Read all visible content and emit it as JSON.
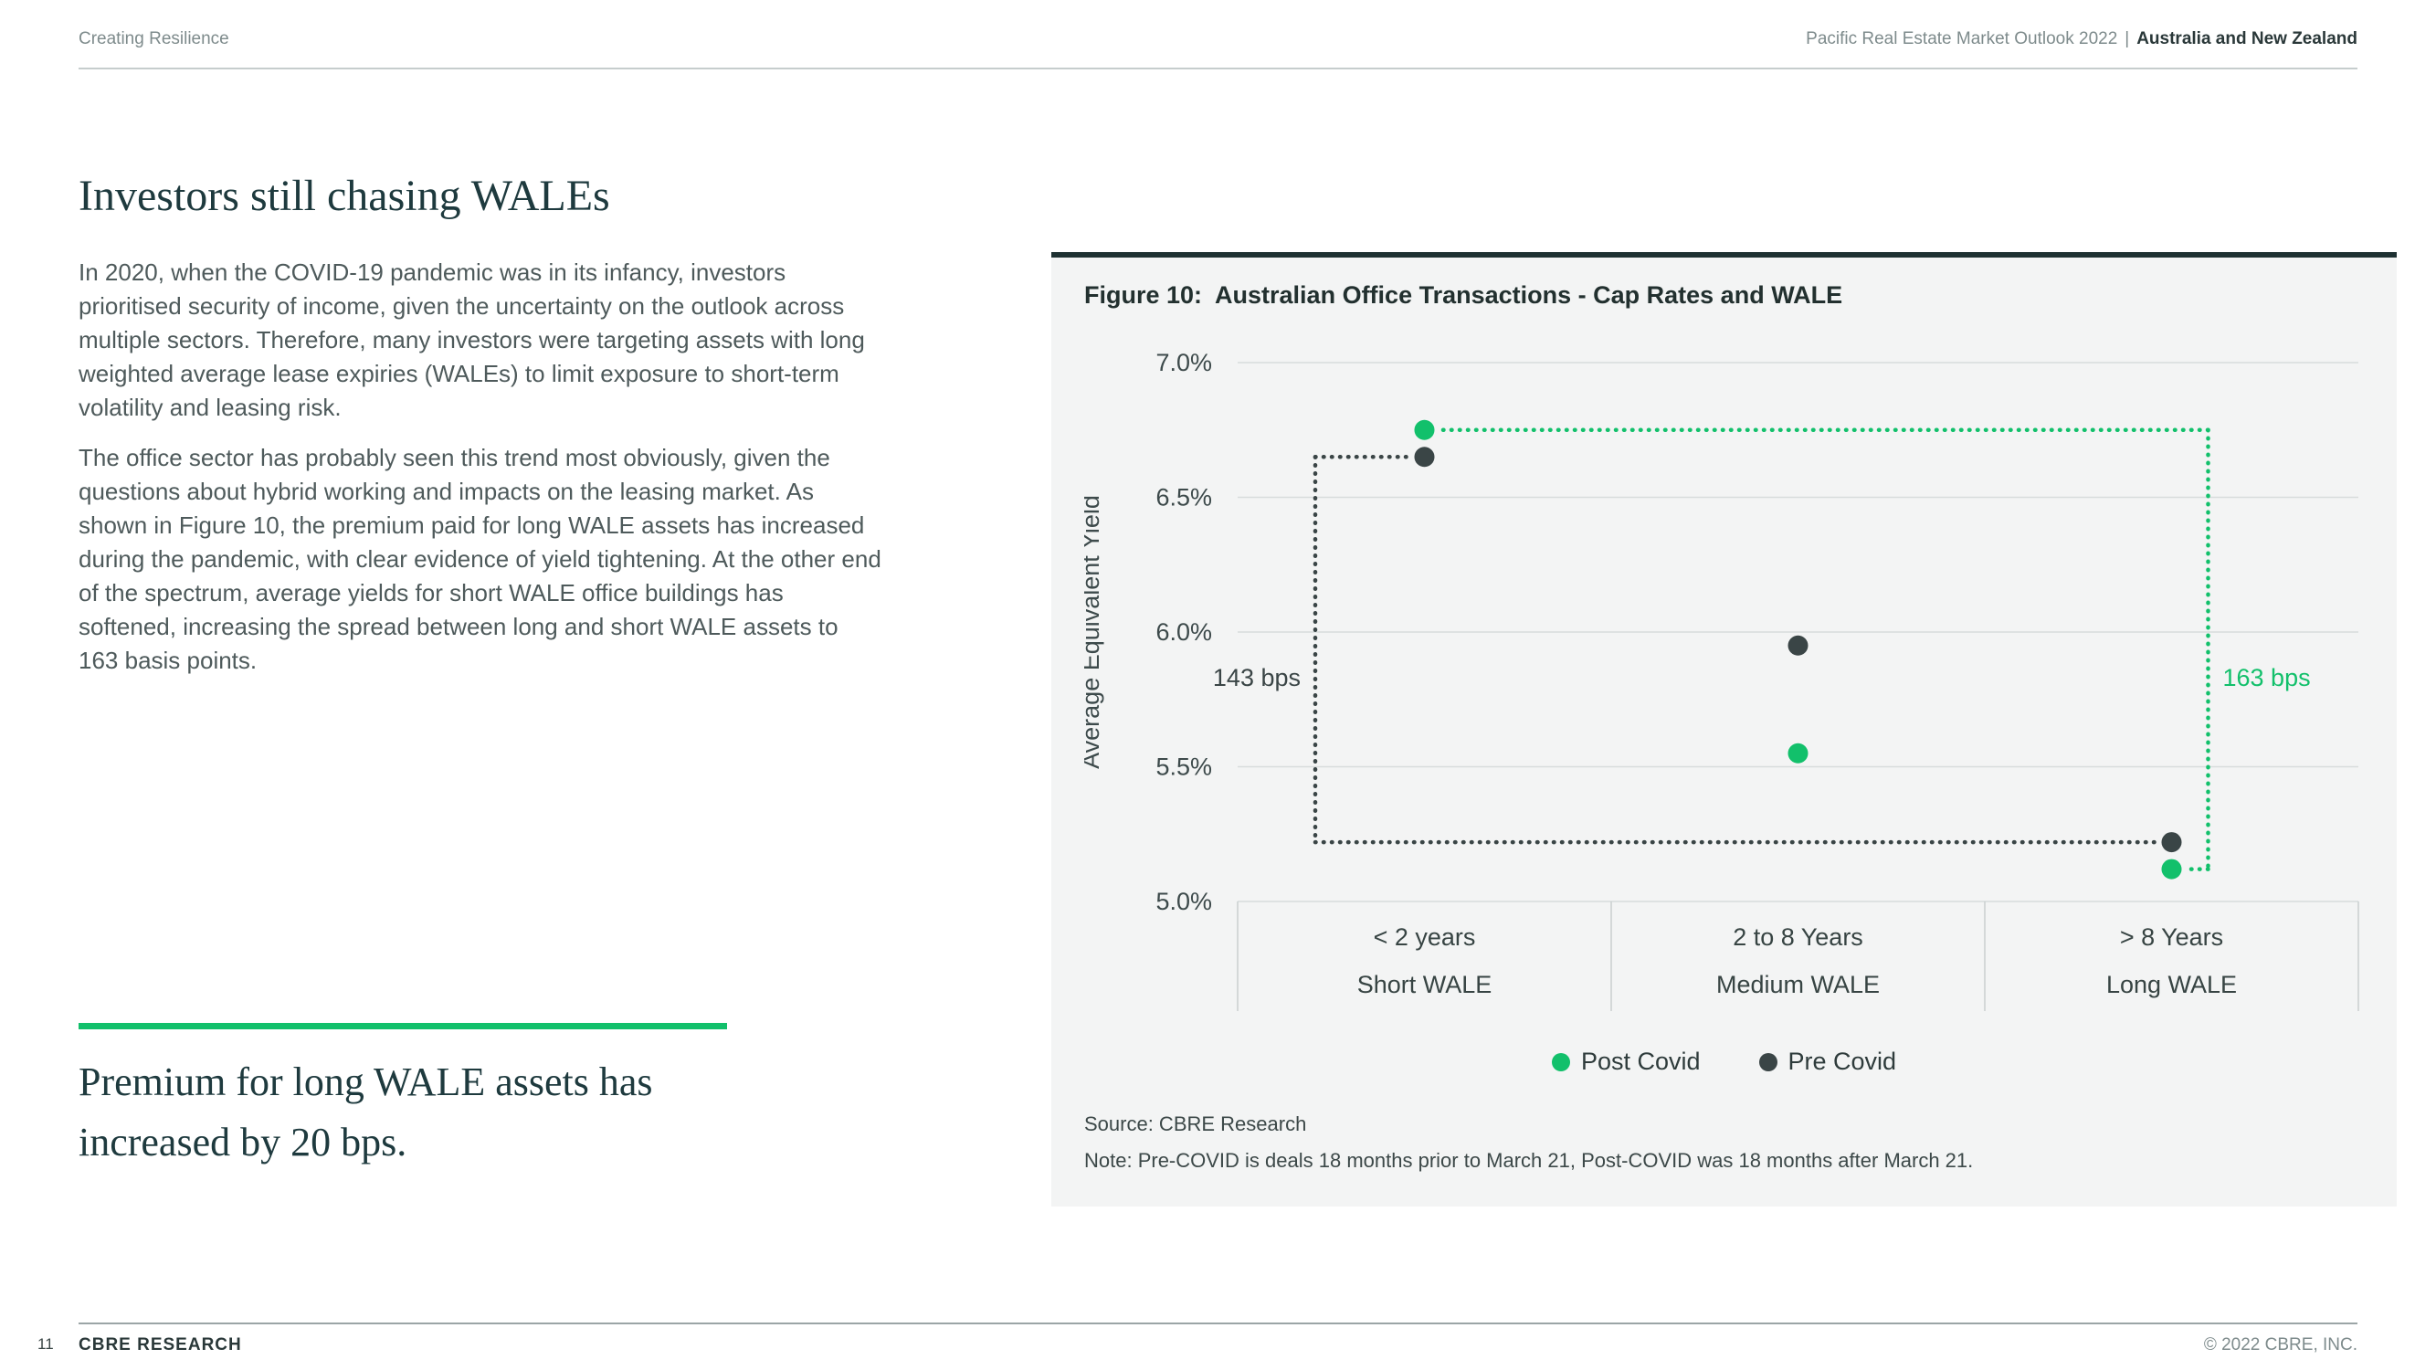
{
  "header": {
    "left": "Creating Resilience",
    "right_prefix": "Pacific Real Estate Market Outlook 2022",
    "separator": "|",
    "right_emphasis": "Australia and New Zealand"
  },
  "article": {
    "title": "Investors still chasing WALEs",
    "paragraphs": [
      "In 2020, when the COVID-19 pandemic was in its infancy, investors prioritised security of income, given the uncertainty on the outlook across multiple sectors. Therefore, many investors were targeting assets with long weighted average lease expiries (WALEs) to limit exposure to short-term volatility and leasing risk.",
      "The office sector has probably seen this trend most obviously, given the questions about hybrid working and impacts on the leasing market. As shown in Figure 10, the premium paid for long WALE assets has increased during the pandemic, with clear evidence of yield tightening. At the other end of the spectrum, average yields for short WALE office buildings has softened, increasing the spread between long and short WALE assets to 163 basis points."
    ],
    "pull_quote": "Premium for long WALE assets has increased by 20 bps."
  },
  "figure": {
    "title": "Figure 10:  Australian Office Transactions - Cap Rates and WALE",
    "source": "Source: CBRE Research",
    "note": "Note: Pre-COVID is deals 18 months prior to March 21, Post-COVID was 18 months after March 21."
  },
  "chart_data": {
    "type": "scatter",
    "title": "Figure 10: Australian Office Transactions - Cap Rates and WALE",
    "ylabel": "Average Equivalent Yield",
    "ylim": [
      5.0,
      7.0
    ],
    "yticks": [
      7.0,
      6.5,
      6.0,
      5.5,
      5.0
    ],
    "grid": true,
    "legend_position": "bottom",
    "categories": [
      {
        "range": "< 2 years",
        "label": "Short WALE"
      },
      {
        "range": "2 to 8 Years",
        "label": "Medium WALE"
      },
      {
        "range": "> 8 Years",
        "label": "Long WALE"
      }
    ],
    "series": [
      {
        "name": "Post Covid",
        "color": "#12C06B",
        "values": [
          6.75,
          5.55,
          5.12
        ]
      },
      {
        "name": "Pre Covid",
        "color": "#3A4546",
        "values": [
          6.65,
          5.95,
          5.22
        ]
      }
    ],
    "annotations": [
      {
        "label": "143 bps",
        "series": "Pre Covid",
        "from": 0,
        "to": 2,
        "side": "left"
      },
      {
        "label": "163 bps",
        "series": "Post Covid",
        "from": 0,
        "to": 2,
        "side": "right"
      }
    ]
  },
  "colors": {
    "accent_green": "#12C06B",
    "heading_teal": "#1E3A3E",
    "body_text": "#4E5A5B",
    "card_bg": "#F3F4F4",
    "card_top_border": "#1E3132",
    "grid_line": "#D8DCDC",
    "muted_text": "#7E8B8C",
    "dark_charcoal": "#3A4546"
  },
  "footer": {
    "page_number": "11",
    "left": "CBRE RESEARCH",
    "right": "© 2022 CBRE, INC."
  }
}
